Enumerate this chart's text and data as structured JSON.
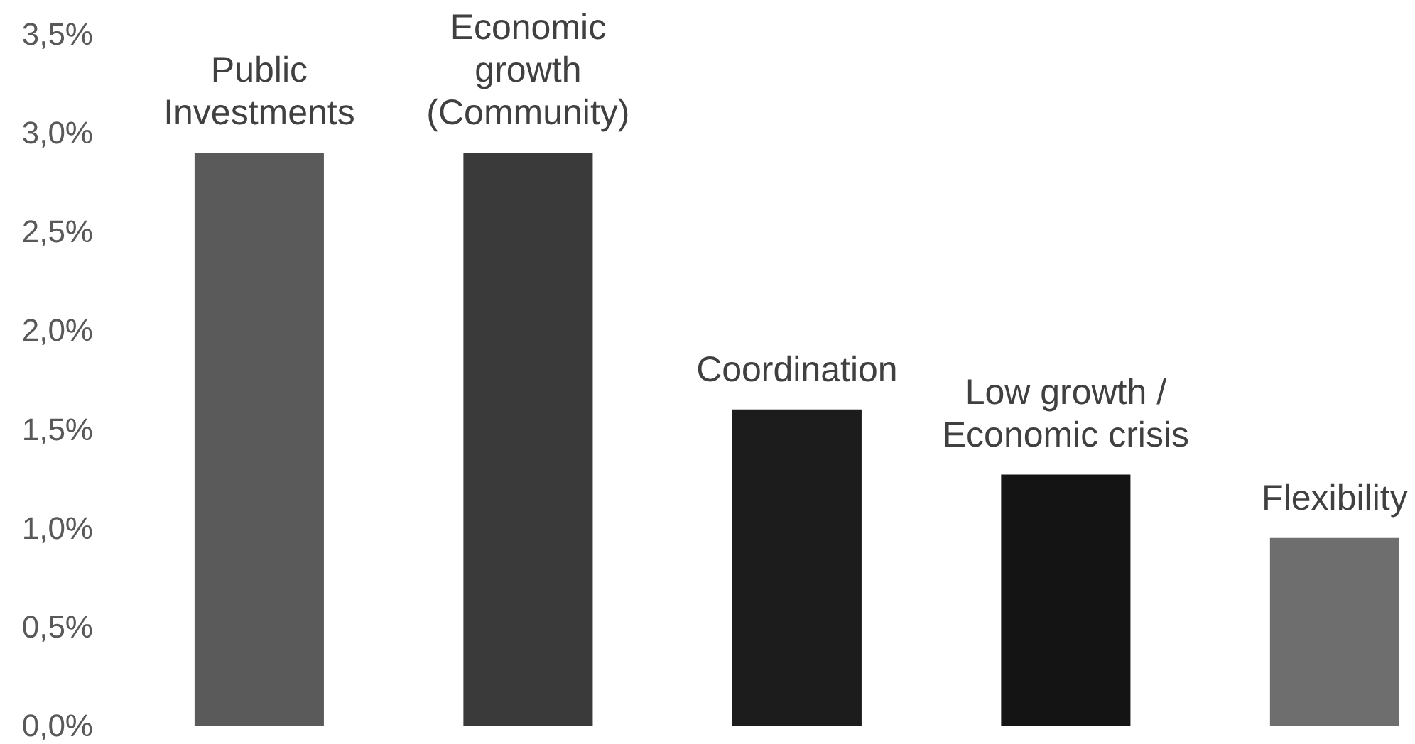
{
  "chart_data": {
    "type": "bar",
    "categories": [
      "Public Investments",
      "Economic growth (Community)",
      "Coordination",
      "Low growth / Economic crisis",
      "Flexibility"
    ],
    "values": [
      2.9,
      2.9,
      1.6,
      1.27,
      0.95
    ],
    "colors": [
      "#5a5a5a",
      "#3a3a3a",
      "#1c1c1c",
      "#141414",
      "#6e6e6e"
    ],
    "ylim": [
      0,
      3.5
    ],
    "yticks": [
      {
        "value": 0,
        "label": "0,0%"
      },
      {
        "value": 0.5,
        "label": "0,5%"
      },
      {
        "value": 1,
        "label": "1,0%"
      },
      {
        "value": 1.5,
        "label": "1,5%"
      },
      {
        "value": 2,
        "label": "2,0%"
      },
      {
        "value": 2.5,
        "label": "2,5%"
      },
      {
        "value": 3,
        "label": "3,0%"
      },
      {
        "value": 3.5,
        "label": "3,5%"
      }
    ],
    "grid": false,
    "legend": false
  }
}
